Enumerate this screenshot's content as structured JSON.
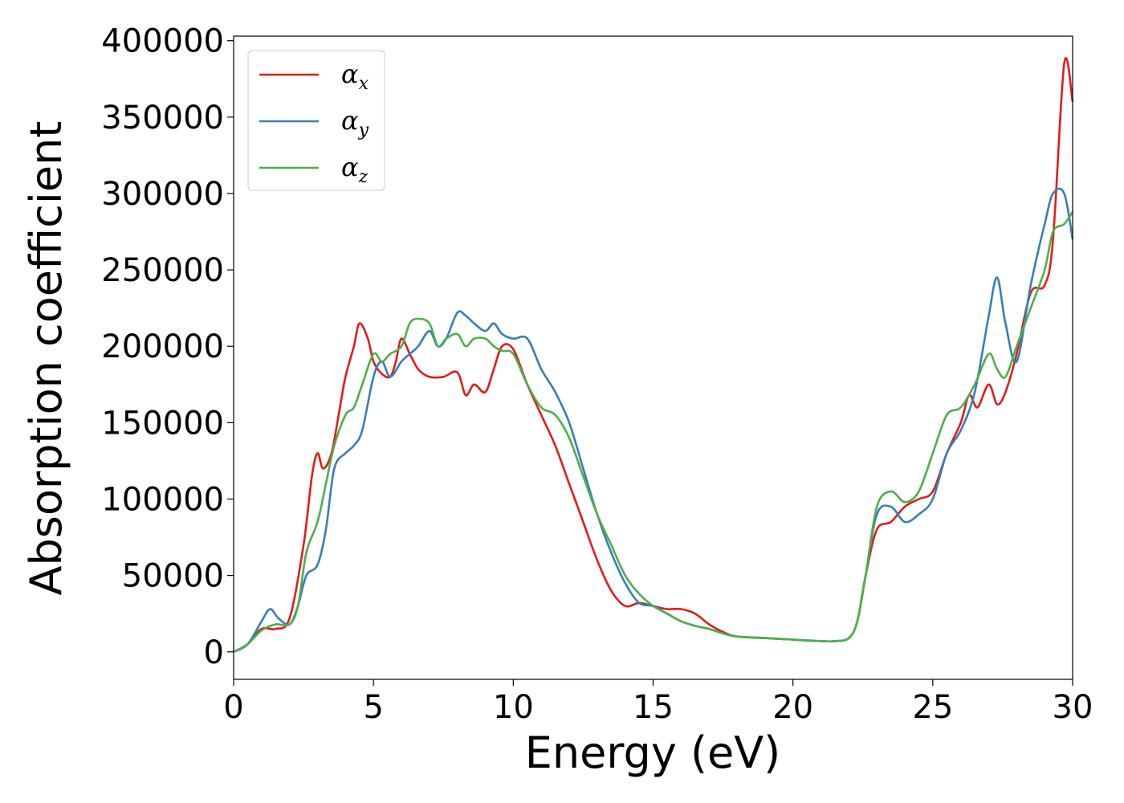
{
  "chart_data": {
    "type": "line",
    "title": "",
    "xlabel": "Energy (eV)",
    "ylabel": "Absorption coefficient",
    "xlim": [
      0,
      30
    ],
    "ylim": [
      -18000,
      403000
    ],
    "xticks": [
      0,
      5,
      10,
      15,
      20,
      25,
      30
    ],
    "yticks": [
      0,
      50000,
      100000,
      150000,
      200000,
      250000,
      300000,
      350000,
      400000
    ],
    "grid": false,
    "legend_position": "top-left",
    "series": [
      {
        "name": "αx",
        "symbol": "α",
        "subscript": "x",
        "color": "#e41a1c",
        "x": [
          0,
          0.5,
          1,
          1.5,
          2,
          2.5,
          2.8,
          3,
          3.2,
          3.5,
          3.8,
          4,
          4.3,
          4.5,
          4.8,
          5,
          5.3,
          5.6,
          5.8,
          6,
          6.3,
          6.6,
          7,
          7.5,
          8,
          8.3,
          8.6,
          9,
          9.3,
          9.6,
          10,
          10.5,
          11,
          11.5,
          12,
          12.5,
          13,
          13.5,
          14,
          14.5,
          15,
          15.5,
          16,
          16.5,
          17,
          17.5,
          18,
          19,
          20,
          21,
          21.5,
          22,
          22.3,
          22.6,
          23,
          23.5,
          24,
          24.5,
          25,
          25.5,
          26,
          26.3,
          26.6,
          27,
          27.3,
          27.6,
          28,
          28.5,
          29,
          29.3,
          29.7,
          30
        ],
        "y": [
          0,
          5000,
          15000,
          15000,
          22000,
          70000,
          115000,
          130000,
          120000,
          130000,
          160000,
          180000,
          200000,
          215000,
          205000,
          190000,
          182000,
          180000,
          190000,
          205000,
          195000,
          185000,
          180000,
          180000,
          183000,
          168000,
          175000,
          170000,
          185000,
          200000,
          198000,
          175000,
          155000,
          135000,
          110000,
          85000,
          60000,
          40000,
          30000,
          32000,
          30000,
          28000,
          28000,
          25000,
          18000,
          13000,
          10000,
          9000,
          8000,
          7000,
          7000,
          9000,
          20000,
          50000,
          80000,
          85000,
          95000,
          100000,
          105000,
          130000,
          150000,
          168000,
          160000,
          175000,
          162000,
          170000,
          195000,
          235000,
          240000,
          270000,
          385000,
          360000
        ]
      },
      {
        "name": "αy",
        "symbol": "α",
        "subscript": "y",
        "color": "#377eb8",
        "x": [
          0,
          0.5,
          1,
          1.3,
          1.6,
          2,
          2.3,
          2.6,
          3,
          3.3,
          3.6,
          4,
          4.3,
          4.6,
          5,
          5.3,
          5.6,
          6,
          6.3,
          6.6,
          7,
          7.3,
          7.6,
          8,
          8.3,
          8.6,
          9,
          9.3,
          9.6,
          10,
          10.5,
          11,
          11.5,
          12,
          12.5,
          13,
          13.5,
          14,
          14.5,
          15,
          15.5,
          16,
          16.5,
          17,
          17.5,
          18,
          19,
          20,
          21,
          21.5,
          22,
          22.3,
          22.6,
          23,
          23.5,
          24,
          24.5,
          25,
          25.5,
          26,
          26.5,
          27,
          27.3,
          27.6,
          28,
          28.5,
          29,
          29.3,
          29.7,
          30
        ],
        "y": [
          0,
          5000,
          20000,
          28000,
          22000,
          18000,
          30000,
          50000,
          57000,
          80000,
          120000,
          130000,
          135000,
          145000,
          180000,
          190000,
          180000,
          190000,
          195000,
          200000,
          210000,
          200000,
          205000,
          222000,
          220000,
          215000,
          210000,
          215000,
          208000,
          205000,
          205000,
          185000,
          170000,
          150000,
          120000,
          90000,
          65000,
          45000,
          32000,
          30000,
          25000,
          20000,
          17000,
          15000,
          12000,
          10000,
          9000,
          8000,
          7000,
          7000,
          9000,
          20000,
          50000,
          90000,
          95000,
          85000,
          90000,
          100000,
          130000,
          145000,
          170000,
          220000,
          245000,
          215000,
          190000,
          240000,
          280000,
          300000,
          300000,
          270000
        ]
      },
      {
        "name": "αz",
        "symbol": "α",
        "subscript": "z",
        "color": "#4daf4a",
        "x": [
          0,
          0.5,
          1,
          1.5,
          2,
          2.3,
          2.6,
          3,
          3.3,
          3.6,
          4,
          4.3,
          4.6,
          5,
          5.3,
          5.6,
          6,
          6.3,
          6.6,
          7,
          7.3,
          7.6,
          8,
          8.3,
          8.6,
          9,
          9.3,
          9.6,
          10,
          10.5,
          11,
          11.5,
          12,
          12.5,
          13,
          13.5,
          14,
          14.5,
          15,
          15.5,
          16,
          16.5,
          17,
          17.5,
          18,
          19,
          20,
          21,
          21.5,
          22,
          22.3,
          22.6,
          23,
          23.5,
          24,
          24.5,
          25,
          25.5,
          26,
          26.5,
          27,
          27.3,
          27.6,
          28,
          28.5,
          29,
          29.3,
          29.7,
          30
        ],
        "y": [
          0,
          5000,
          14000,
          18000,
          18000,
          30000,
          65000,
          85000,
          110000,
          135000,
          155000,
          160000,
          175000,
          195000,
          190000,
          195000,
          200000,
          215000,
          218000,
          215000,
          200000,
          205000,
          208000,
          200000,
          205000,
          205000,
          200000,
          197000,
          195000,
          175000,
          160000,
          155000,
          140000,
          115000,
          90000,
          70000,
          50000,
          38000,
          30000,
          25000,
          20000,
          17000,
          15000,
          12000,
          10000,
          9000,
          8000,
          7000,
          7000,
          9000,
          20000,
          50000,
          95000,
          105000,
          98000,
          105000,
          130000,
          155000,
          160000,
          175000,
          195000,
          185000,
          180000,
          200000,
          225000,
          250000,
          275000,
          280000,
          288000
        ]
      }
    ]
  }
}
